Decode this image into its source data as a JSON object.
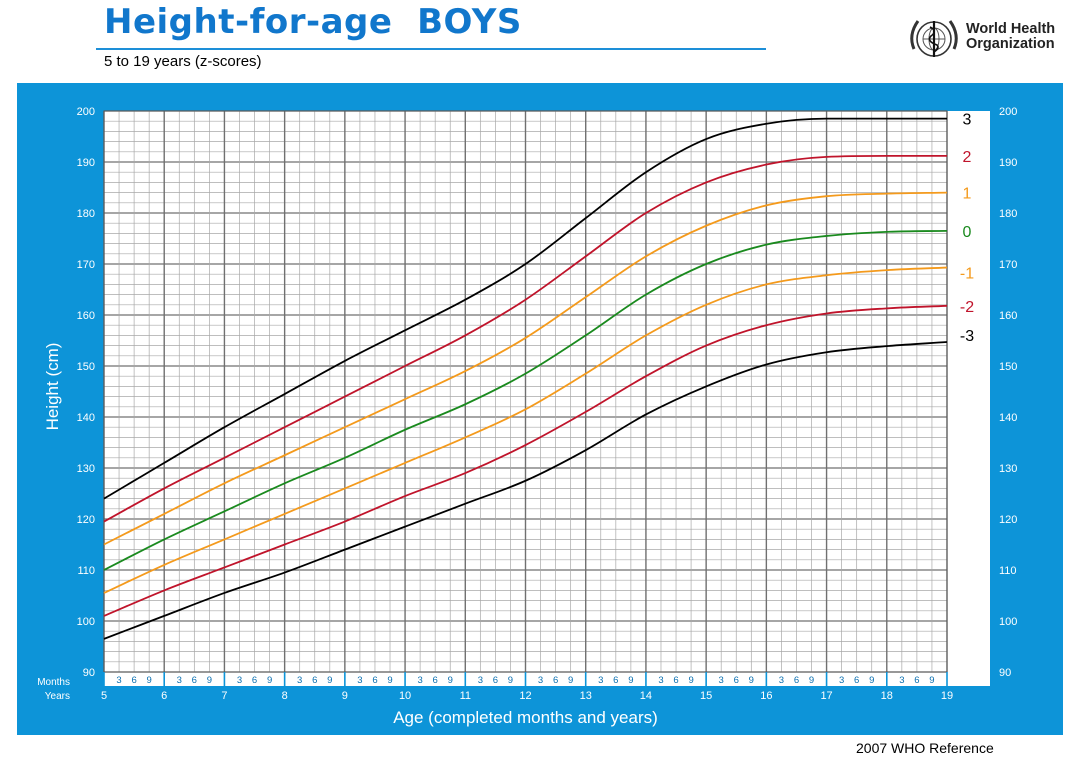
{
  "header": {
    "title": "Height-for-age  BOYS",
    "subtitle": "5 to 19 years (z-scores)",
    "org_line1": "World Health",
    "org_line2": "Organization",
    "logo_icon": "who-emblem-icon"
  },
  "footer": {
    "reference": "2007 WHO Reference"
  },
  "colors": {
    "frame": "#0d94d8",
    "black": "#000000",
    "red": "#c0142b",
    "orange": "#f49a1c",
    "green": "#1a8a1e"
  },
  "chart_data": {
    "type": "line",
    "title": "Height-for-age  BOYS",
    "subtitle": "5 to 19 years (z-scores)",
    "xlabel": "Age (completed months and years)",
    "ylabel": "Height (cm)",
    "xlim": [
      5,
      19
    ],
    "ylim": [
      90,
      200
    ],
    "y_ticks": [
      90,
      100,
      110,
      120,
      130,
      140,
      150,
      160,
      170,
      180,
      190,
      200
    ],
    "x_year_ticks": [
      "5",
      "6",
      "7",
      "8",
      "9",
      "10",
      "11",
      "12",
      "13",
      "14",
      "15",
      "16",
      "17",
      "18",
      "19"
    ],
    "x_month_ticks": [
      "3",
      "6",
      "9"
    ],
    "axis_row_labels": [
      "Months",
      "Years"
    ],
    "grid": true,
    "x": [
      5,
      6,
      7,
      8,
      9,
      10,
      11,
      12,
      13,
      14,
      15,
      16,
      17,
      18,
      19
    ],
    "series": [
      {
        "name": "3",
        "color": "#000000",
        "values": [
          124,
          131,
          138,
          144.5,
          151,
          157,
          163,
          170,
          179,
          188,
          194.5,
          197.5,
          198.5,
          198.5,
          198.5
        ]
      },
      {
        "name": "2",
        "color": "#c0142b",
        "values": [
          119.5,
          126,
          132,
          138,
          144,
          150,
          156,
          163,
          171.5,
          180,
          186,
          189.5,
          191,
          191.2,
          191.2
        ]
      },
      {
        "name": "1",
        "color": "#f49a1c",
        "values": [
          115,
          121,
          127,
          132.5,
          138,
          143.5,
          149,
          155.5,
          163.5,
          171.5,
          177.5,
          181.5,
          183.3,
          183.8,
          184
        ]
      },
      {
        "name": "0",
        "color": "#1a8a1e",
        "values": [
          110,
          116,
          121.5,
          127,
          132,
          137.5,
          142.5,
          148.5,
          156,
          164,
          170,
          173.8,
          175.5,
          176.3,
          176.5
        ]
      },
      {
        "name": "-1",
        "color": "#f49a1c",
        "values": [
          105.5,
          111,
          116,
          121,
          126,
          131,
          136,
          141.5,
          148.5,
          156,
          162,
          166,
          167.8,
          168.8,
          169.3
        ]
      },
      {
        "name": "-2",
        "color": "#c0142b",
        "values": [
          101,
          106,
          110.5,
          115,
          119.5,
          124.5,
          129,
          134.5,
          141,
          148,
          154,
          158,
          160.3,
          161.3,
          161.8
        ]
      },
      {
        "name": "-3",
        "color": "#000000",
        "values": [
          96.5,
          101,
          105.5,
          109.5,
          114,
          118.5,
          123,
          127.5,
          133.5,
          140.5,
          146,
          150.3,
          152.7,
          153.9,
          154.7
        ]
      }
    ]
  }
}
